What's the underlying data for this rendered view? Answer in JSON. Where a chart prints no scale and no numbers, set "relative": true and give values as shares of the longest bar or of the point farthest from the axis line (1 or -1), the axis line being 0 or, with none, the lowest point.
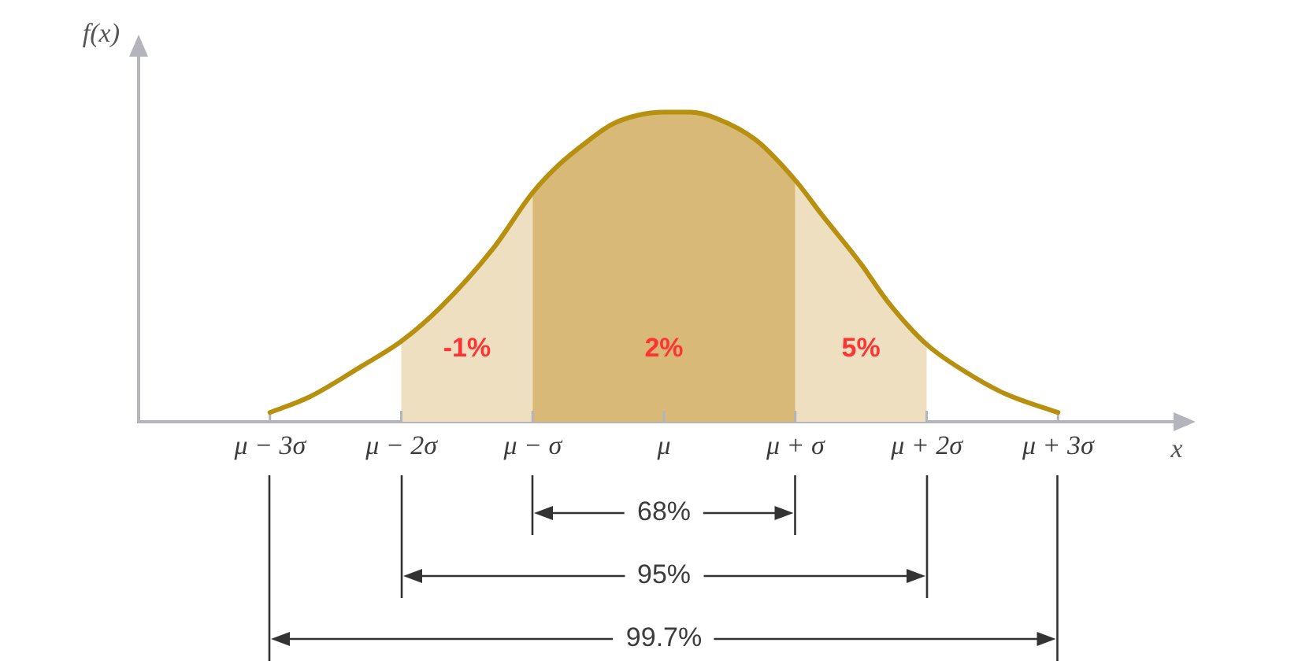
{
  "chart_data": {
    "type": "line",
    "ylabel": "f(x)",
    "xlabel": "x",
    "x": [
      -3,
      -2.7,
      -2.3,
      -2,
      -1.7,
      -1.3,
      -1,
      -0.8,
      -0.6,
      -0.4,
      -0.2,
      0,
      0.2,
      0.4,
      0.7,
      1,
      1.2,
      1.5,
      1.7,
      2,
      2.3,
      2.6,
      3
    ],
    "series": [
      {
        "color": "#b8900f",
        "values": [
          0.03,
          0.08,
          0.18,
          0.26,
          0.37,
          0.56,
          0.74,
          0.83,
          0.9,
          0.96,
          0.99,
          1,
          1,
          0.98,
          0.91,
          0.78,
          0.67,
          0.51,
          0.39,
          0.25,
          0.16,
          0.09,
          0.03
        ]
      }
    ],
    "relative": true,
    "marker": "none",
    "xlim": [
      -4,
      4
    ],
    "xticks": [
      {
        "value": -3,
        "label": "μ − 3σ"
      },
      {
        "value": -2,
        "label": "μ − 2σ"
      },
      {
        "value": -1,
        "label": "μ − σ"
      },
      {
        "value": 0,
        "label": "μ"
      },
      {
        "value": 1,
        "label": "μ + σ"
      },
      {
        "value": 2,
        "label": "μ + 2σ"
      },
      {
        "value": 3,
        "label": "μ + 3σ"
      }
    ],
    "bands": [
      {
        "axis": "x",
        "from": -2,
        "to": -1,
        "color": "#eedfc0",
        "label": "-1%"
      },
      {
        "axis": "x",
        "from": -1,
        "to": 1,
        "color": "#d9b978",
        "label": "2%"
      },
      {
        "axis": "x",
        "from": 1,
        "to": 2,
        "color": "#eedfc0",
        "label": "5%"
      }
    ],
    "annotations": [
      "68%",
      "95%",
      "99.7%"
    ]
  }
}
